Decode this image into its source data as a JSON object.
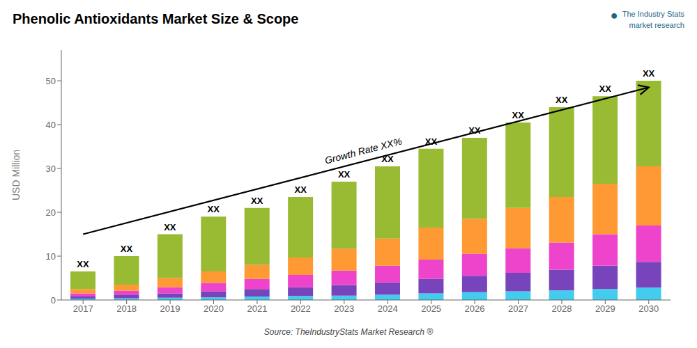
{
  "chart_data": {
    "type": "bar",
    "stacked": true,
    "title": "Phenolic Antioxidants Market Size & Scope",
    "y_label": "USD Million",
    "source": "Source: TheIndustryStats Market Research ®",
    "categories": [
      "2017",
      "2018",
      "2019",
      "2020",
      "2021",
      "2022",
      "2023",
      "2024",
      "2025",
      "2026",
      "2027",
      "2028",
      "2029",
      "2030"
    ],
    "series": [
      {
        "color": "#44CCEE",
        "values": [
          0.3,
          0.4,
          0.5,
          0.6,
          0.8,
          0.9,
          1.0,
          1.2,
          1.5,
          1.8,
          2.0,
          2.2,
          2.5,
          2.8
        ]
      },
      {
        "color": "#7744BB",
        "values": [
          0.5,
          0.7,
          1.0,
          1.4,
          1.7,
          2.0,
          2.4,
          2.8,
          3.3,
          3.7,
          4.2,
          4.7,
          5.3,
          5.9
        ]
      },
      {
        "color": "#EE44CC",
        "values": [
          0.7,
          1.0,
          1.4,
          1.9,
          2.3,
          2.8,
          3.3,
          3.8,
          4.4,
          5.0,
          5.6,
          6.2,
          7.2,
          8.3
        ]
      },
      {
        "color": "#FF9933",
        "values": [
          1.0,
          1.4,
          2.1,
          2.6,
          3.2,
          4.0,
          5.0,
          6.2,
          7.3,
          8.0,
          9.2,
          10.4,
          11.5,
          13.5
        ]
      },
      {
        "color": "#99BB33",
        "values": [
          4.0,
          6.5,
          10.0,
          12.5,
          13.0,
          13.8,
          15.3,
          16.5,
          18.0,
          18.5,
          19.5,
          20.5,
          20.0,
          19.5
        ]
      }
    ],
    "bar_labels": [
      "XX",
      "XX",
      "XX",
      "XX",
      "XX",
      "XX",
      "XX",
      "XX",
      "XX",
      "XX",
      "XX",
      "XX",
      "XX",
      "XX"
    ],
    "arrow": {
      "from": {
        "x": "2017",
        "y": 15.0
      },
      "to": {
        "x": "2030",
        "y": 48.5
      },
      "label": "Growth Rate XX%"
    },
    "logo": {
      "icon": "●",
      "lines": [
        "The Industry Stats",
        "market research"
      ],
      "color": "#1a6688"
    },
    "ylim": [
      0,
      57
    ],
    "yticks": [
      0,
      10,
      20,
      30,
      40,
      50
    ],
    "grid": false
  }
}
